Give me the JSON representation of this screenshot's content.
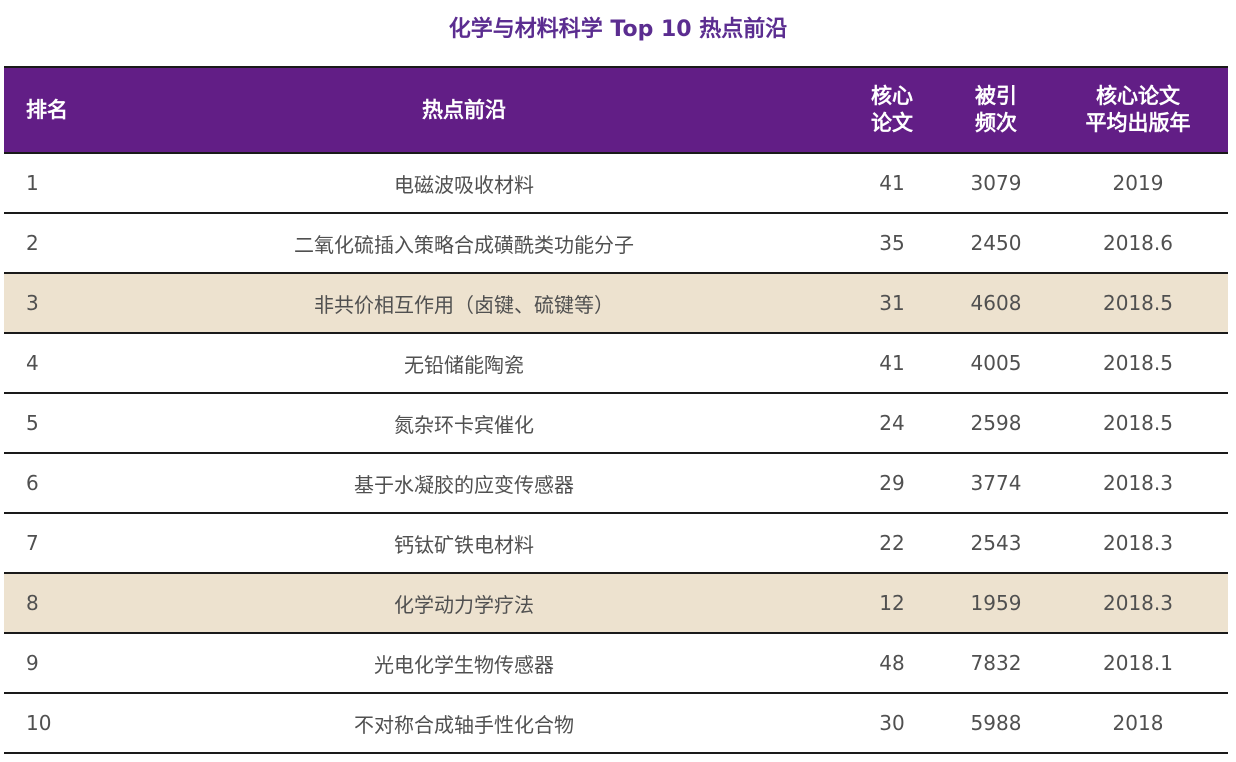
{
  "title": "化学与材料科学 Top 10 热点前沿",
  "table": {
    "headers": {
      "rank": "排名",
      "frontier": "热点前沿",
      "core_papers_l1": "核心",
      "core_papers_l2": "论文",
      "citations_l1": "被引",
      "citations_l2": "频次",
      "avg_year_l1": "核心论文",
      "avg_year_l2": "平均出版年"
    },
    "highlight_color": "#ede2cf",
    "header_color": "#621e86",
    "rows": [
      {
        "rank": "1",
        "frontier": "电磁波吸收材料",
        "core_papers": "41",
        "citations": "3079",
        "avg_year": "2019",
        "highlighted": false
      },
      {
        "rank": "2",
        "frontier": "二氧化硫插入策略合成磺酰类功能分子",
        "core_papers": "35",
        "citations": "2450",
        "avg_year": "2018.6",
        "highlighted": false
      },
      {
        "rank": "3",
        "frontier": "非共价相互作用（卤键、硫键等）",
        "core_papers": "31",
        "citations": "4608",
        "avg_year": "2018.5",
        "highlighted": true
      },
      {
        "rank": "4",
        "frontier": "无铅储能陶瓷",
        "core_papers": "41",
        "citations": "4005",
        "avg_year": "2018.5",
        "highlighted": false
      },
      {
        "rank": "5",
        "frontier": "氮杂环卡宾催化",
        "core_papers": "24",
        "citations": "2598",
        "avg_year": "2018.5",
        "highlighted": false
      },
      {
        "rank": "6",
        "frontier": "基于水凝胶的应变传感器",
        "core_papers": "29",
        "citations": "3774",
        "avg_year": "2018.3",
        "highlighted": false
      },
      {
        "rank": "7",
        "frontier": "钙钛矿铁电材料",
        "core_papers": "22",
        "citations": "2543",
        "avg_year": "2018.3",
        "highlighted": false
      },
      {
        "rank": "8",
        "frontier": "化学动力学疗法",
        "core_papers": "12",
        "citations": "1959",
        "avg_year": "2018.3",
        "highlighted": true
      },
      {
        "rank": "9",
        "frontier": "光电化学生物传感器",
        "core_papers": "48",
        "citations": "7832",
        "avg_year": "2018.1",
        "highlighted": false
      },
      {
        "rank": "10",
        "frontier": "不对称合成轴手性化合物",
        "core_papers": "30",
        "citations": "5988",
        "avg_year": "2018",
        "highlighted": false
      }
    ]
  }
}
